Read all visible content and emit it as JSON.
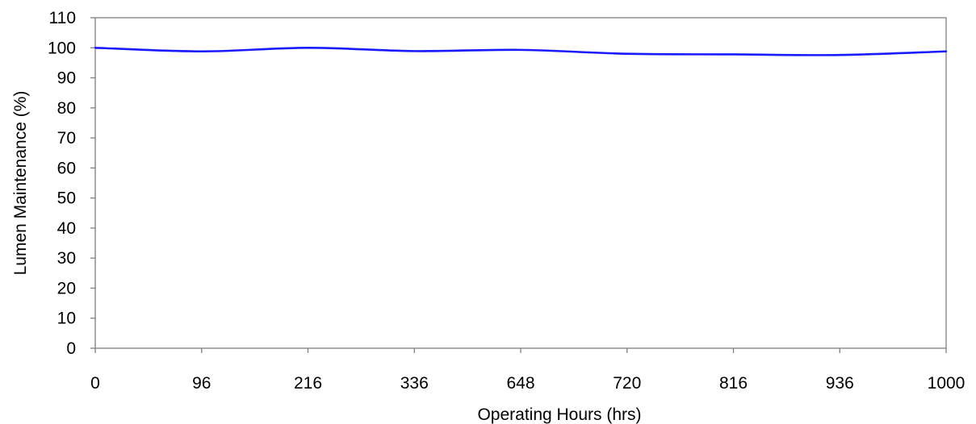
{
  "chart_data": {
    "type": "line",
    "title": "",
    "xlabel": "Operating Hours (hrs)",
    "ylabel": "Lumen Maintenance (%)",
    "categories": [
      "0",
      "96",
      "216",
      "336",
      "648",
      "720",
      "816",
      "936",
      "1000"
    ],
    "y_ticks": [
      "0",
      "10",
      "20",
      "30",
      "40",
      "50",
      "60",
      "70",
      "80",
      "90",
      "100",
      "110"
    ],
    "ylim": [
      0,
      110
    ],
    "grid": false,
    "legend": "none",
    "series": [
      {
        "color": "#1a1aff",
        "values": [
          100,
          98.8,
          100,
          98.9,
          99.3,
          98.0,
          97.8,
          97.6,
          98.8
        ]
      }
    ]
  }
}
